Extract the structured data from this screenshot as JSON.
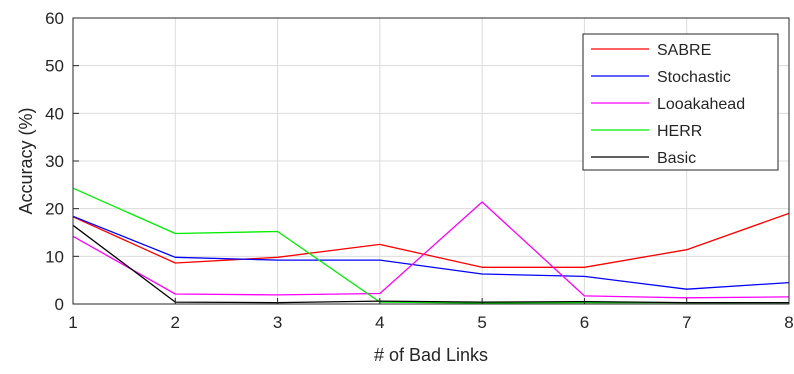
{
  "chart_data": {
    "type": "line",
    "title": "",
    "xlabel": "# of Bad Links",
    "ylabel": "Accuracy (%)",
    "x": [
      1,
      2,
      3,
      4,
      5,
      6,
      7,
      8
    ],
    "xlim": [
      1,
      8
    ],
    "ylim": [
      0,
      60
    ],
    "xticks": [
      "1",
      "2",
      "3",
      "4",
      "5",
      "6",
      "7",
      "8"
    ],
    "yticks": [
      "0",
      "10",
      "20",
      "30",
      "40",
      "50",
      "60"
    ],
    "grid": true,
    "legend_position": "top-right",
    "series": [
      {
        "name": "SABRE",
        "color": "#ff0000",
        "values": [
          18.3,
          8.6,
          9.8,
          12.5,
          7.7,
          7.7,
          11.4,
          19.0
        ]
      },
      {
        "name": "Stochastic",
        "color": "#0000ff",
        "values": [
          18.4,
          9.8,
          9.2,
          9.2,
          6.3,
          5.8,
          3.1,
          4.5
        ]
      },
      {
        "name": "Looakahead",
        "color": "#ff00ff",
        "values": [
          14.2,
          2.1,
          1.9,
          2.2,
          21.4,
          1.7,
          1.3,
          1.5
        ]
      },
      {
        "name": "HERR",
        "color": "#00ee00",
        "values": [
          24.3,
          14.8,
          15.2,
          0.4,
          0.2,
          0.3,
          0.3,
          0.3
        ]
      },
      {
        "name": "Basic",
        "color": "#000000",
        "values": [
          16.5,
          0.4,
          0.3,
          0.6,
          0.4,
          0.5,
          0.3,
          0.3
        ]
      }
    ]
  }
}
